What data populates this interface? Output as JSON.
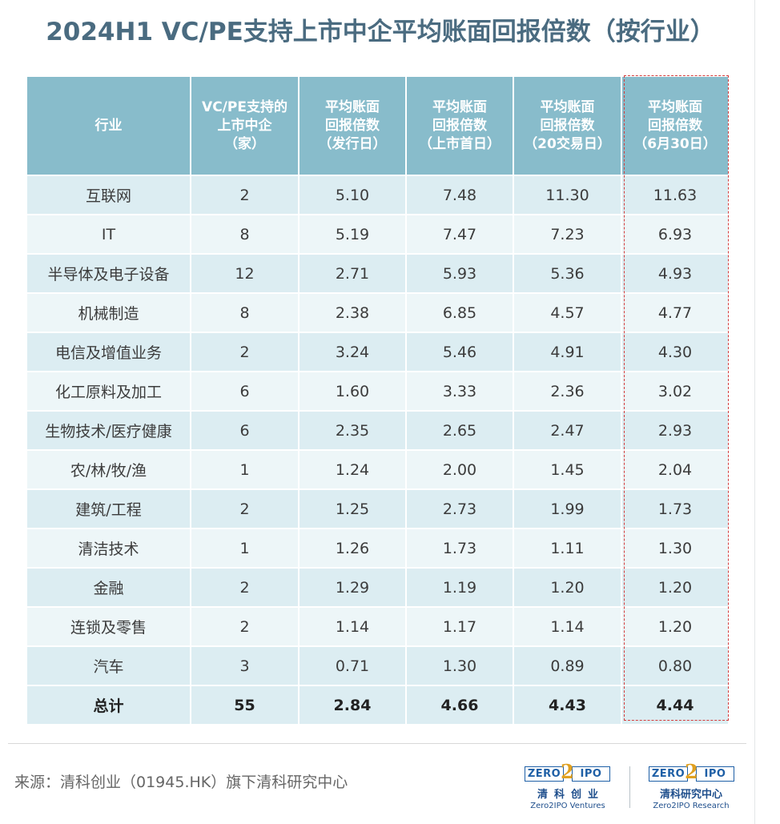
{
  "title": "2024H1 VC/PE支持上市中企平均账面回报倍数（按行业）",
  "table": {
    "headers": [
      [
        "行业"
      ],
      [
        "VC/PE支持的",
        "上市中企",
        "（家）"
      ],
      [
        "平均账面",
        "回报倍数",
        "（发行日）"
      ],
      [
        "平均账面",
        "回报倍数",
        "（上市首日）"
      ],
      [
        "平均账面",
        "回报倍数",
        "（20交易日）"
      ],
      [
        "平均账面",
        "回报倍数",
        "（6月30日）"
      ]
    ],
    "rows": [
      [
        "互联网",
        "2",
        "5.10",
        "7.48",
        "11.30",
        "11.63"
      ],
      [
        "IT",
        "8",
        "5.19",
        "7.47",
        "7.23",
        "6.93"
      ],
      [
        "半导体及电子设备",
        "12",
        "2.71",
        "5.93",
        "5.36",
        "4.93"
      ],
      [
        "机械制造",
        "8",
        "2.38",
        "6.85",
        "4.57",
        "4.77"
      ],
      [
        "电信及增值业务",
        "2",
        "3.24",
        "5.46",
        "4.91",
        "4.30"
      ],
      [
        "化工原料及加工",
        "6",
        "1.60",
        "3.33",
        "2.36",
        "3.02"
      ],
      [
        "生物技术/医疗健康",
        "6",
        "2.35",
        "2.65",
        "2.47",
        "2.93"
      ],
      [
        "农/林/牧/渔",
        "1",
        "1.24",
        "2.00",
        "1.45",
        "2.04"
      ],
      [
        "建筑/工程",
        "2",
        "1.25",
        "2.73",
        "1.99",
        "1.73"
      ],
      [
        "清洁技术",
        "1",
        "1.26",
        "1.73",
        "1.11",
        "1.30"
      ],
      [
        "金融",
        "2",
        "1.29",
        "1.19",
        "1.20",
        "1.20"
      ],
      [
        "连锁及零售",
        "2",
        "1.14",
        "1.17",
        "1.14",
        "1.20"
      ],
      [
        "汽车",
        "3",
        "0.71",
        "1.30",
        "0.89",
        "0.80"
      ],
      [
        "总计",
        "55",
        "2.84",
        "4.66",
        "4.43",
        "4.44"
      ]
    ]
  },
  "source": "来源：清科创业（01945.HK）旗下清科研究中心",
  "logos": {
    "ventures": {
      "left_word": "ZERO",
      "digit": "2",
      "right_word": "IPO",
      "name_cn": "清科创业",
      "name_en": "Zero2IPO Ventures"
    },
    "research": {
      "left_word": "ZERO",
      "digit": "2",
      "right_word": "IPO",
      "name_cn": "清科研究中心",
      "name_en": "Zero2IPO Research"
    }
  },
  "colors": {
    "title": "#4a6b80",
    "header_bg": "#88bccb",
    "row_odd": "#dcedf2",
    "row_even": "#edf6f8",
    "highlight_border": "#d43d3d",
    "logo_blue": "#1e5fa6",
    "logo_orange": "#e0a020"
  }
}
